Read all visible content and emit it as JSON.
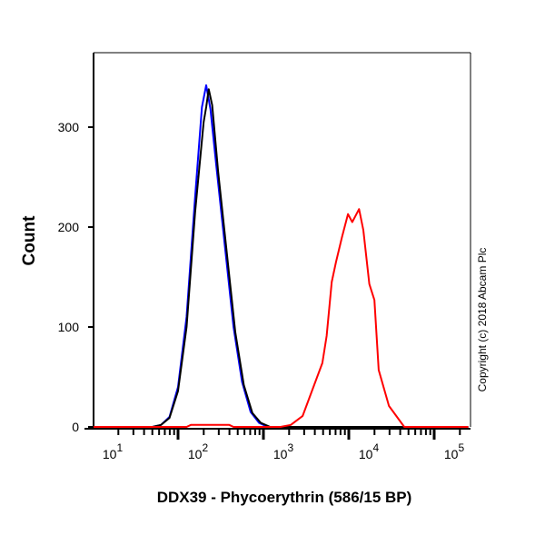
{
  "chart_data": {
    "type": "line",
    "title": "",
    "xlabel": "DDX39 - Phycoerythrin (586/15 BP)",
    "ylabel": "Count",
    "xscale": "log",
    "xlim": [
      10,
      250000
    ],
    "ylim": [
      0,
      375
    ],
    "x_ticks": [
      {
        "base": "10",
        "exp": "1"
      },
      {
        "base": "10",
        "exp": "2"
      },
      {
        "base": "10",
        "exp": "3"
      },
      {
        "base": "10",
        "exp": "4"
      },
      {
        "base": "10",
        "exp": "5"
      }
    ],
    "y_ticks": [
      "0",
      "100",
      "200",
      "300"
    ],
    "annotation": "Copyright (c) 2018 Abcam Plc",
    "grid": false,
    "legend": "none",
    "series": [
      {
        "color": "#0000ff",
        "log10_x": [
          1.0,
          1.7,
          1.8,
          1.9,
          2.0,
          2.1,
          2.2,
          2.28,
          2.33,
          2.38,
          2.45,
          2.55,
          2.65,
          2.75,
          2.85,
          2.95,
          3.05,
          5.4
        ],
        "y": [
          0,
          0,
          2,
          10,
          40,
          110,
          230,
          320,
          342,
          318,
          260,
          180,
          100,
          45,
          15,
          4,
          0,
          0
        ]
      },
      {
        "color": "#000000",
        "log10_x": [
          1.0,
          1.7,
          1.8,
          1.9,
          2.0,
          2.1,
          2.2,
          2.3,
          2.33,
          2.36,
          2.4,
          2.47,
          2.57,
          2.67,
          2.77,
          2.87,
          2.97,
          3.08,
          5.4
        ],
        "y": [
          0,
          0,
          2,
          9,
          36,
          100,
          215,
          305,
          320,
          338,
          322,
          255,
          175,
          95,
          42,
          14,
          4,
          0,
          0
        ]
      },
      {
        "color": "#ff0000",
        "log10_x": [
          1.0,
          2.1,
          2.15,
          2.6,
          2.65,
          3.2,
          3.32,
          3.46,
          3.56,
          3.69,
          3.74,
          3.8,
          3.85,
          3.92,
          3.99,
          4.04,
          4.12,
          4.17,
          4.24,
          4.3,
          4.35,
          4.47,
          4.65,
          5.4
        ],
        "y": [
          0,
          0,
          2,
          2,
          0,
          0,
          2,
          11,
          34,
          64,
          91,
          145,
          165,
          190,
          213,
          205,
          218,
          197,
          143,
          127,
          57,
          21,
          0,
          0
        ]
      }
    ]
  }
}
